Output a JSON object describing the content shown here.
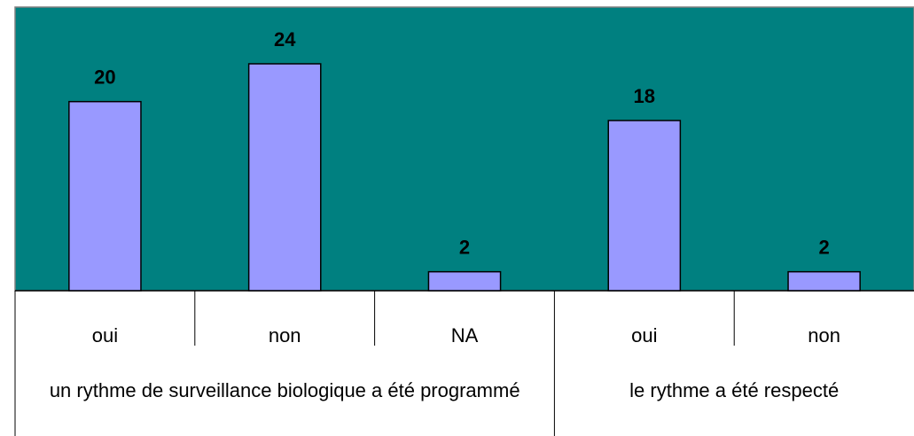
{
  "chart_data": {
    "type": "bar",
    "groups": [
      {
        "label": "un rythme de surveillance biologique a été programmé",
        "categories": [
          "oui",
          "non",
          "NA"
        ],
        "values": [
          20,
          24,
          2
        ]
      },
      {
        "label": "le rythme a été respecté",
        "categories": [
          "oui",
          "non"
        ],
        "values": [
          18,
          2
        ]
      }
    ],
    "color": "#9999ff",
    "background": "#008080",
    "ylim": [
      0,
      30
    ]
  }
}
